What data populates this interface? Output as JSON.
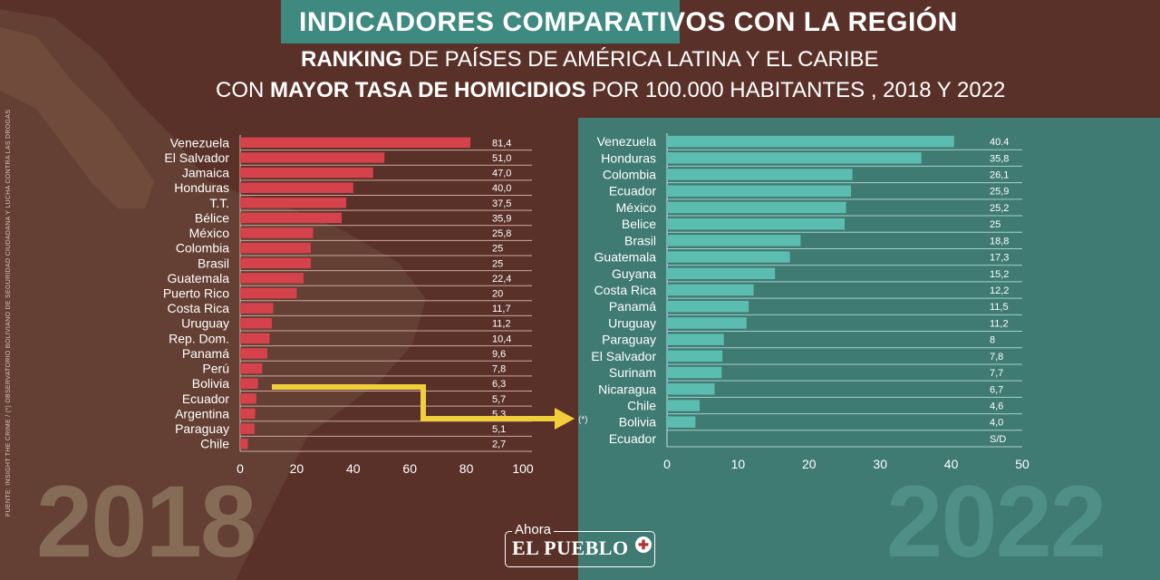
{
  "header": {
    "title_a": "INDICADORES COMPARATIVOS",
    "title_b": "CON LA REGIÓN",
    "subtitle1_bold": "RANKING",
    "subtitle1_rest": " DE PAÍSES DE AMÉRICA LATINA Y EL CARIBE",
    "subtitle2_start": "CON ",
    "subtitle2_bold": "MAYOR TASA DE HOMICIDIOS",
    "subtitle2_rest": " POR 100.000 HABITANTES , 2018 Y 2022"
  },
  "source_note": "FUENTE: INSIGHT THE CRIME / (*) OBSERVATORIO BOLIVIANO DE SEGURIDAD CIUDADANA Y LUCHA CONTRA LAS DROGAS",
  "footnote_marker": "(*)",
  "logo": {
    "small": "Ahora",
    "main": "EL PUEBLO",
    "mark": "✚"
  },
  "colors": {
    "background_left": "#5a3129",
    "background_right": "#3f7a73",
    "bar_2018": "#d6424c",
    "bar_2022": "#5bbdb0",
    "arrow": "#f2cf3a",
    "highlight_title": "#3f8a80"
  },
  "chart_data": [
    {
      "type": "bar",
      "orientation": "horizontal",
      "year_label": "2018",
      "categories": [
        "Venezuela",
        "El Salvador",
        "Jamaica",
        "Honduras",
        "T.T.",
        "Bélice",
        "México",
        "Colombia",
        "Brasil",
        "Guatemala",
        "Puerto Rico",
        "Costa Rica",
        "Uruguay",
        "Rep. Dom.",
        "Panamá",
        "Perú",
        "Bolivia",
        "Ecuador",
        "Argentina",
        "Paraguay",
        "Chile"
      ],
      "values": [
        81.4,
        51.0,
        47.0,
        40.0,
        37.5,
        35.9,
        25.8,
        25,
        25,
        22.4,
        20,
        11.7,
        11.2,
        10.4,
        9.6,
        7.8,
        6.3,
        5.7,
        5.3,
        5.1,
        2.7
      ],
      "value_labels": [
        "81,4",
        "51,0",
        "47,0",
        "40,0",
        "37,5",
        "35,9",
        "25,8",
        "25",
        "25",
        "22,4",
        "20",
        "11,7",
        "11,2",
        "10,4",
        "9,6",
        "7,8",
        "6,3",
        "5,7",
        "5,3",
        "5,1",
        "2,7"
      ],
      "xlim": [
        0,
        100
      ],
      "xticks": [
        "0",
        "20",
        "40",
        "60",
        "80",
        "100"
      ],
      "grid": true
    },
    {
      "type": "bar",
      "orientation": "horizontal",
      "year_label": "2022",
      "categories": [
        "Venezuela",
        "Honduras",
        "Colombia",
        "Ecuador",
        "México",
        "Belice",
        "Brasil",
        "Guatemala",
        "Guyana",
        "Costa Rica",
        "Panamá",
        "Uruguay",
        "Paraguay",
        "El Salvador",
        "Surinam",
        "Nicaragua",
        "Chile",
        "Bolivia",
        "Ecuador"
      ],
      "values": [
        40.4,
        35.8,
        26.1,
        25.9,
        25.2,
        25,
        18.8,
        17.3,
        15.2,
        12.2,
        11.5,
        11.2,
        8,
        7.8,
        7.7,
        6.7,
        4.6,
        4.0,
        null
      ],
      "value_labels": [
        "40.4",
        "35,8",
        "26,1",
        "25,9",
        "25,2",
        "25",
        "18,8",
        "17,3",
        "15,2",
        "12,2",
        "11,5",
        "11,2",
        "8",
        "7,8",
        "7,7",
        "6,7",
        "4,6",
        "4,0",
        "S/D"
      ],
      "xlim": [
        0,
        50
      ],
      "xticks": [
        "0",
        "10",
        "20",
        "30",
        "40",
        "50"
      ],
      "grid": true
    }
  ]
}
